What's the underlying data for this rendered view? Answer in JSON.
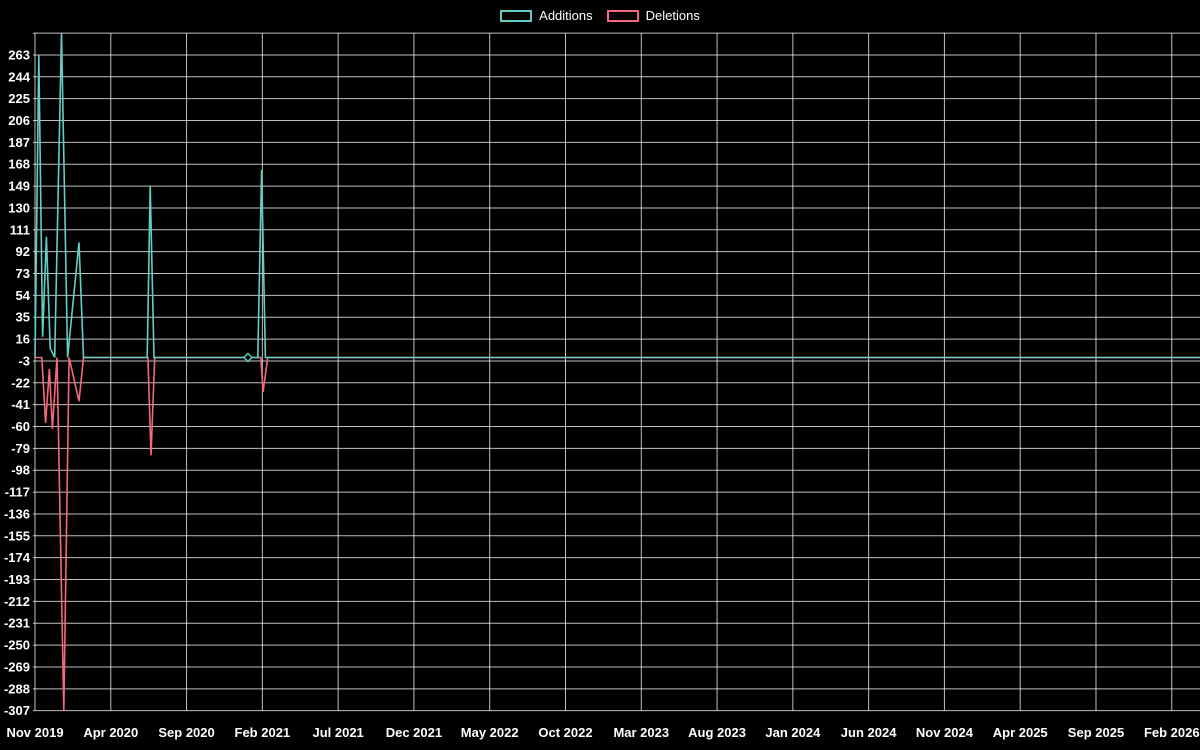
{
  "chart_data": {
    "type": "line",
    "title": "",
    "xlabel": "",
    "ylabel": "",
    "legend_position": "top-center",
    "background_color": "#000000",
    "grid": true,
    "grid_color": "rgba(255,255,255,0.75)",
    "text_color": "#ffffff",
    "ylim": [
      -307,
      282
    ],
    "xlim_months": [
      0,
      76.9
    ],
    "x_unit": "months since Nov 2019",
    "y_ticks": [
      263,
      244,
      225,
      206,
      187,
      168,
      149,
      130,
      111,
      92,
      73,
      54,
      35,
      16,
      -3,
      -22,
      -41,
      -60,
      -79,
      -98,
      -117,
      -136,
      -155,
      -174,
      -193,
      -212,
      -231,
      -250,
      -269,
      -288,
      -307
    ],
    "x_tick_months": [
      0,
      5,
      10,
      15,
      20,
      25,
      30,
      35,
      40,
      45,
      50,
      55,
      60,
      65,
      70,
      75
    ],
    "x_tick_labels": [
      "Nov 2019",
      "Apr 2020",
      "Sep 2020",
      "Feb 2021",
      "Jul 2021",
      "Dec 2021",
      "May 2022",
      "Oct 2022",
      "Mar 2023",
      "Aug 2023",
      "Jan 2024",
      "Jun 2024",
      "Nov 2024",
      "Apr 2025",
      "Sep 2025",
      "Feb 2026"
    ],
    "series": [
      {
        "name": "Additions",
        "color": "#62cfc5",
        "points": [
          [
            0,
            0
          ],
          [
            0.25,
            263
          ],
          [
            0.5,
            18
          ],
          [
            0.75,
            105
          ],
          [
            1.0,
            8
          ],
          [
            1.3,
            0
          ],
          [
            1.75,
            282
          ],
          [
            2.15,
            0
          ],
          [
            2.9,
            100
          ],
          [
            3.2,
            0
          ],
          [
            7.4,
            0
          ],
          [
            7.6,
            149
          ],
          [
            7.85,
            0
          ],
          [
            14.7,
            0
          ],
          [
            14.95,
            163
          ],
          [
            15.2,
            0
          ],
          [
            76.9,
            0
          ]
        ]
      },
      {
        "name": "Deletions",
        "color": "#f4687d",
        "points": [
          [
            0,
            0
          ],
          [
            0.45,
            0
          ],
          [
            0.7,
            -57
          ],
          [
            0.95,
            -10
          ],
          [
            1.15,
            -62
          ],
          [
            1.45,
            0
          ],
          [
            1.9,
            -307
          ],
          [
            2.25,
            0
          ],
          [
            2.9,
            -38
          ],
          [
            3.2,
            0
          ],
          [
            7.45,
            0
          ],
          [
            7.65,
            -85
          ],
          [
            7.9,
            0
          ],
          [
            14.9,
            0
          ],
          [
            15.05,
            -30
          ],
          [
            15.35,
            0
          ],
          [
            76.9,
            0
          ]
        ]
      }
    ],
    "markers": [
      {
        "series": "Additions",
        "shape": "diamond",
        "x": 14.05,
        "y": 0
      }
    ]
  }
}
